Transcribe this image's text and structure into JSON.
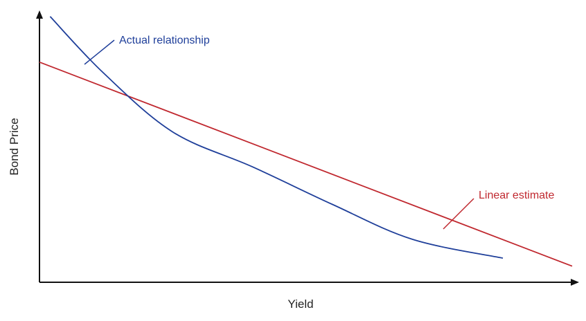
{
  "chart_data": {
    "type": "line",
    "xlabel": "Yield",
    "ylabel": "Bond Price",
    "grid": false,
    "series": [
      {
        "name": "Actual relationship",
        "color": "#1f3f9a",
        "curve": "convex",
        "x": [
          0.02,
          0.12,
          0.25,
          0.4,
          0.55,
          0.7,
          0.87
        ],
        "y": [
          0.99,
          0.78,
          0.56,
          0.43,
          0.29,
          0.16,
          0.09
        ]
      },
      {
        "name": "Linear estimate",
        "color": "#c0282f",
        "curve": "linear",
        "x": [
          0.0,
          1.0
        ],
        "y": [
          0.82,
          0.06
        ]
      }
    ],
    "annotations": [
      {
        "text": "Actual relationship",
        "color": "#1f3f9a"
      },
      {
        "text": "Linear estimate",
        "color": "#c0282f"
      }
    ],
    "axis_color": "#111111"
  }
}
